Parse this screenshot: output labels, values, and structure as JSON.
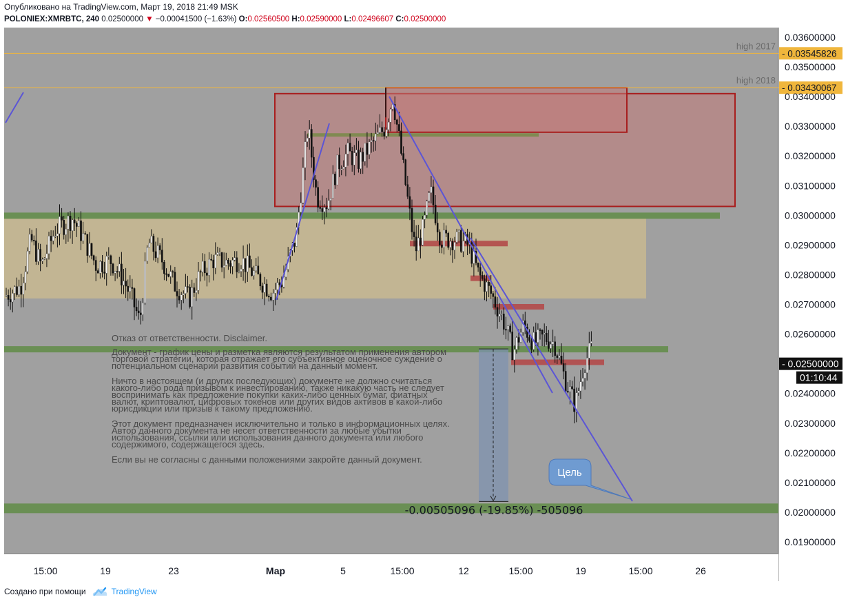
{
  "header": {
    "published": "Опубликовано на TradingView.com, Март 19, 2018 21:49 MSK",
    "symbol": "POLONIEX:XMRBTC, 240",
    "last": "0.02500000",
    "change": "−0.00041500 (−1.63%)",
    "o_label": "O:",
    "o_value": "0.02560500",
    "h_label": "H:",
    "h_value": "0.02590000",
    "l_label": "L:",
    "l_value": "0.02496607",
    "c_label": "C:",
    "c_value": "0.02500000"
  },
  "footer": {
    "created_with": "Создано при помощи",
    "brand": "TradingView"
  },
  "colors": {
    "plot_bg": "#a0a0a0",
    "green_band": "#6a8f54",
    "beige_zone": "#c8b890",
    "red_zone": "#c27a78",
    "red_border": "#a81e1e",
    "trend_line": "#5b55d6",
    "orange_level": "#f0b63c",
    "candle_up": "#f2f2f2",
    "candle_down": "#111111"
  },
  "disclaimer": {
    "title": "Отказ от ответственности. Disclaimer.",
    "p1": "Документ - график цены и разметка являются результатом применения автором торговой стратегии, которая отражает его субъективное оценочное суждение о потенциальном сценарии развития событий на данный момент.",
    "p2": "Ничто в настоящем (и других последующих) документе не должно считаться какого-либо рода призывом к инвестированию, также никакую часть не следует воспринимать как предложение покупки каких-либо ценных бумаг, фиатных валют, криптовалют, цифровых токенов или других видов активов в какой-либо юрисдикции или призыв к такому предложению.",
    "p3": "Этот документ предназначен исключительно и только в информационных целях. Автор данного документа не несет ответственности за любые убытки использования, ссылки или использования данного документа или любого содержимого, содержащегося здесь.",
    "p4": "Если вы не согласны с данными положениями закройте данный документ."
  },
  "chart_data": {
    "type": "candlestick",
    "symbol": "POLONIEX:XMRBTC",
    "timeframe": "240",
    "ylim": [
      0.0185,
      0.0365
    ],
    "y_ticks": [
      "0.03600000",
      "0.03500000",
      "0.03400000",
      "0.03300000",
      "0.03200000",
      "0.03100000",
      "0.03000000",
      "0.02900000",
      "0.02800000",
      "0.02700000",
      "0.02600000",
      "0.02400000",
      "0.02300000",
      "0.02200000",
      "0.02100000",
      "0.02000000",
      "0.01900000"
    ],
    "x_ticks": [
      "15:00",
      "19",
      "23",
      "Мар",
      "5",
      "15:00",
      "12",
      "15:00",
      "19",
      "15:00",
      "26"
    ],
    "levels": [
      {
        "label": "high 2017",
        "value": "0.03545826",
        "y": 0.03545826
      },
      {
        "label": "high 2018",
        "value": "0.03430067",
        "y": 0.03430067
      }
    ],
    "current_price": {
      "value": "0.02500000",
      "y": 0.025,
      "countdown": "01:10:44"
    },
    "measure": {
      "from": 0.0255,
      "to": 0.0205,
      "label": "-0.00505096 (-19.85%) -505096"
    },
    "target_label": "Цель",
    "zones": [
      {
        "name": "beige-zone",
        "y1": 0.0272,
        "y2": 0.03
      },
      {
        "name": "big-red-zone",
        "y1": 0.0303,
        "y2": 0.0341
      },
      {
        "name": "small-red-zone",
        "y1": 0.0328,
        "y2": 0.0343
      }
    ],
    "green_bands": [
      0.03,
      0.0255,
      0.0202
    ]
  }
}
